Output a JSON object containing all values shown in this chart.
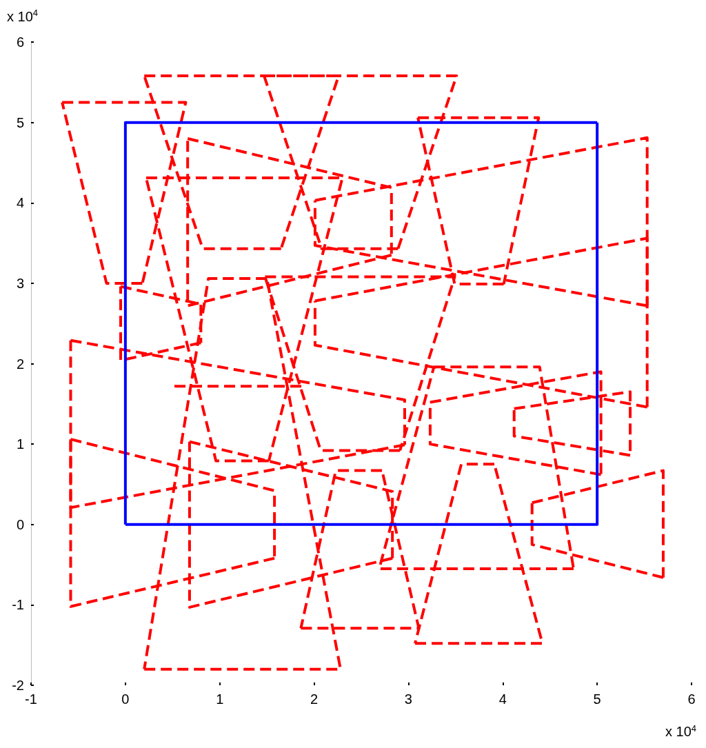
{
  "chart_data": {
    "type": "line",
    "xlim": [
      -1,
      6
    ],
    "ylim": [
      -2,
      6
    ],
    "xticks": [
      -1,
      0,
      1,
      2,
      3,
      4,
      5,
      6
    ],
    "yticks": [
      -2,
      -1,
      0,
      1,
      2,
      3,
      4,
      5,
      6
    ],
    "grid": false,
    "marker": "none",
    "annotations": [
      "x 10$^{4}$",
      "x 10$^{4}$"
    ],
    "series": [
      {
        "color": "#ff0000",
        "line_style": "dashed",
        "x": [
          -0.67,
          0.64,
          0.18
        ],
        "values": [
          5.25,
          5.25,
          3.0
        ]
      },
      {
        "color": "#ff0000",
        "line_style": "dashed",
        "x": [
          0.18,
          -0.2,
          -0.67
        ],
        "values": [
          3.0,
          3.0,
          5.25
        ]
      },
      {
        "color": "#ff0000",
        "line_style": "dashed",
        "x": [
          0.2,
          2.26,
          1.65
        ],
        "values": [
          5.58,
          5.58,
          3.43
        ]
      },
      {
        "color": "#ff0000",
        "line_style": "dashed",
        "x": [
          1.65,
          0.82,
          0.2
        ],
        "values": [
          3.43,
          3.43,
          5.58
        ]
      },
      {
        "color": "#ff0000",
        "line_style": "dashed",
        "x": [
          1.47,
          3.51,
          2.89
        ],
        "values": [
          5.58,
          5.58,
          3.43
        ]
      },
      {
        "color": "#ff0000",
        "line_style": "dashed",
        "x": [
          2.89,
          2.08,
          1.47
        ],
        "values": [
          3.43,
          3.43,
          5.58
        ]
      },
      {
        "color": "#ff0000",
        "line_style": "dashed",
        "x": [
          3.1,
          4.38,
          4.01
        ],
        "values": [
          5.06,
          5.06,
          2.99
        ]
      },
      {
        "color": "#ff0000",
        "line_style": "dashed",
        "x": [
          4.01,
          3.49,
          3.1
        ],
        "values": [
          2.99,
          2.99,
          5.06
        ]
      },
      {
        "color": "#ff0000",
        "line_style": "dashed",
        "x": [
          0.66,
          2.82,
          2.82
        ],
        "values": [
          4.8,
          4.19,
          3.35
        ]
      },
      {
        "color": "#ff0000",
        "line_style": "dashed",
        "x": [
          2.82,
          0.66,
          0.66
        ],
        "values": [
          3.35,
          2.72,
          4.8
        ]
      },
      {
        "color": "#ff0000",
        "line_style": "dashed",
        "x": [
          0.22,
          2.3,
          1.52
        ],
        "values": [
          4.31,
          4.31,
          0.79
        ]
      },
      {
        "color": "#ff0000",
        "line_style": "dashed",
        "x": [
          1.52,
          0.96,
          0.22
        ],
        "values": [
          0.79,
          0.79,
          4.31
        ]
      },
      {
        "color": "#ff0000",
        "line_style": "dashed",
        "x": [
          0.52,
          1.91
        ],
        "values": [
          1.72,
          1.72
        ]
      },
      {
        "color": "#ff0000",
        "line_style": "dashed",
        "x": [
          1.48,
          3.49,
          2.91
        ],
        "values": [
          3.08,
          3.08,
          0.92
        ]
      },
      {
        "color": "#ff0000",
        "line_style": "dashed",
        "x": [
          2.91,
          2.07,
          1.48
        ],
        "values": [
          0.92,
          0.92,
          3.08
        ]
      },
      {
        "color": "#ff0000",
        "line_style": "dashed",
        "x": [
          2.01,
          5.53,
          5.53
        ],
        "values": [
          4.03,
          4.81,
          2.72
        ]
      },
      {
        "color": "#ff0000",
        "line_style": "dashed",
        "x": [
          5.53,
          2.01,
          2.01
        ],
        "values": [
          2.72,
          3.47,
          4.03
        ]
      },
      {
        "color": "#ff0000",
        "line_style": "dashed",
        "x": [
          2.01,
          5.53,
          5.53
        ],
        "values": [
          2.78,
          3.56,
          1.46
        ]
      },
      {
        "color": "#ff0000",
        "line_style": "dashed",
        "x": [
          5.53,
          2.01,
          2.01
        ],
        "values": [
          1.46,
          2.23,
          2.78
        ]
      },
      {
        "color": "#ff0000",
        "line_style": "dashed",
        "x": [
          -0.05,
          0.8,
          0.8
        ],
        "values": [
          2.96,
          2.74,
          2.26
        ]
      },
      {
        "color": "#ff0000",
        "line_style": "dashed",
        "x": [
          0.8,
          -0.05,
          -0.05
        ],
        "values": [
          2.26,
          2.04,
          2.96
        ]
      },
      {
        "color": "#ff0000",
        "line_style": "dashed",
        "x": [
          -0.58,
          2.96,
          2.96
        ],
        "values": [
          2.29,
          1.55,
          0.99
        ]
      },
      {
        "color": "#ff0000",
        "line_style": "dashed",
        "x": [
          2.96,
          -0.58,
          -0.58
        ],
        "values": [
          0.99,
          0.21,
          2.29
        ]
      },
      {
        "color": "#ff0000",
        "line_style": "dashed",
        "x": [
          -0.58,
          1.58,
          1.58
        ],
        "values": [
          1.06,
          0.42,
          -0.42
        ]
      },
      {
        "color": "#ff0000",
        "line_style": "dashed",
        "x": [
          1.58,
          -0.58,
          -0.58
        ],
        "values": [
          -0.42,
          -1.02,
          1.06
        ]
      },
      {
        "color": "#ff0000",
        "line_style": "dashed",
        "x": [
          0.68,
          2.83,
          2.83
        ],
        "values": [
          1.03,
          0.41,
          -0.42
        ]
      },
      {
        "color": "#ff0000",
        "line_style": "dashed",
        "x": [
          2.83,
          0.68,
          0.68
        ],
        "values": [
          -0.42,
          -1.03,
          1.03
        ]
      },
      {
        "color": "#ff0000",
        "line_style": "dashed",
        "x": [
          0.2,
          2.28,
          1.5
        ],
        "values": [
          -1.8,
          -1.8,
          3.06
        ]
      },
      {
        "color": "#ff0000",
        "line_style": "dashed",
        "x": [
          1.5,
          0.88,
          0.2
        ],
        "values": [
          3.06,
          3.06,
          -1.8
        ]
      },
      {
        "color": "#ff0000",
        "line_style": "dashed",
        "x": [
          1.86,
          3.11,
          2.72
        ],
        "values": [
          -1.29,
          -1.29,
          0.67
        ]
      },
      {
        "color": "#ff0000",
        "line_style": "dashed",
        "x": [
          2.72,
          2.23,
          1.86
        ],
        "values": [
          0.67,
          0.67,
          -1.29
        ]
      },
      {
        "color": "#ff0000",
        "line_style": "dashed",
        "x": [
          3.07,
          4.42,
          3.91
        ],
        "values": [
          -1.48,
          -1.48,
          0.75
        ]
      },
      {
        "color": "#ff0000",
        "line_style": "dashed",
        "x": [
          3.91,
          3.56,
          3.07
        ],
        "values": [
          0.75,
          0.75,
          -1.48
        ]
      },
      {
        "color": "#ff0000",
        "line_style": "dashed",
        "x": [
          3.27,
          4.39,
          4.75
        ],
        "values": [
          1.96,
          1.96,
          -0.55
        ]
      },
      {
        "color": "#ff0000",
        "line_style": "dashed",
        "x": [
          4.75,
          2.69,
          3.27
        ],
        "values": [
          -0.55,
          -0.55,
          1.96
        ]
      },
      {
        "color": "#ff0000",
        "line_style": "dashed",
        "x": [
          4.31,
          5.7,
          5.7
        ],
        "values": [
          0.27,
          0.67,
          -0.66
        ]
      },
      {
        "color": "#ff0000",
        "line_style": "dashed",
        "x": [
          5.7,
          4.31,
          4.31
        ],
        "values": [
          -0.66,
          -0.25,
          0.27
        ]
      },
      {
        "color": "#ff0000",
        "line_style": "dashed",
        "x": [
          4.12,
          5.35,
          5.35
        ],
        "values": [
          1.44,
          1.65,
          0.86
        ]
      },
      {
        "color": "#ff0000",
        "line_style": "dashed",
        "x": [
          5.35,
          4.12,
          4.12
        ],
        "values": [
          0.86,
          1.1,
          1.44
        ]
      },
      {
        "color": "#ff0000",
        "line_style": "dashed",
        "x": [
          3.23,
          5.04,
          5.04
        ],
        "values": [
          1.52,
          1.9,
          0.62
        ]
      },
      {
        "color": "#ff0000",
        "line_style": "dashed",
        "x": [
          5.04,
          3.23,
          3.23
        ],
        "values": [
          0.62,
          1.0,
          1.52
        ]
      },
      {
        "color": "#0000ff",
        "line_style": "solid",
        "x": [
          0,
          5,
          5
        ],
        "values": [
          0,
          0,
          5
        ]
      },
      {
        "color": "#0000ff",
        "line_style": "solid",
        "x": [
          5,
          0,
          0
        ],
        "values": [
          5,
          5,
          0
        ]
      }
    ]
  }
}
